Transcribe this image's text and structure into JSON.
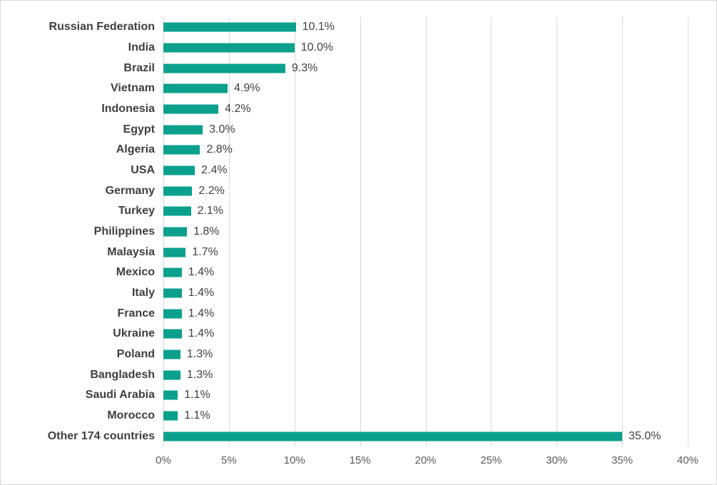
{
  "chart_data": {
    "type": "bar",
    "orientation": "horizontal",
    "title": "",
    "xlabel": "",
    "ylabel": "",
    "categories": [
      "Russian Federation",
      "India",
      "Brazil",
      "Vietnam",
      "Indonesia",
      "Egypt",
      "Algeria",
      "USA",
      "Germany",
      "Turkey",
      "Philippines",
      "Malaysia",
      "Mexico",
      "Italy",
      "France",
      "Ukraine",
      "Poland",
      "Bangladesh",
      "Saudi Arabia",
      "Morocco",
      "Other 174 countries"
    ],
    "values": [
      10.1,
      10.0,
      9.3,
      4.9,
      4.2,
      3.0,
      2.8,
      2.4,
      2.2,
      2.1,
      1.8,
      1.7,
      1.4,
      1.4,
      1.4,
      1.4,
      1.3,
      1.3,
      1.1,
      1.1,
      35.0
    ],
    "data_labels": [
      "10.1%",
      "10.0%",
      "9.3%",
      "4.9%",
      "4.2%",
      "3.0%",
      "2.8%",
      "2.4%",
      "2.2%",
      "2.1%",
      "1.8%",
      "1.7%",
      "1.4%",
      "1.4%",
      "1.4%",
      "1.4%",
      "1.3%",
      "1.3%",
      "1.1%",
      "1.1%",
      "35.0%"
    ],
    "xlim": [
      0,
      40
    ],
    "x_ticks": [
      "0%",
      "5%",
      "10%",
      "15%",
      "20%",
      "25%",
      "30%",
      "35%",
      "40%"
    ],
    "x_tick_values": [
      0,
      5,
      10,
      15,
      20,
      25,
      30,
      35,
      40
    ],
    "grid": true,
    "legend": false,
    "colors": {
      "bar": "#0aa08c",
      "grid": "#d9d9d9",
      "border": "#d9d9d9",
      "background": "#ffffff",
      "category_label": "#3f3f3f",
      "data_label": "#404040",
      "tick_label": "#595959"
    }
  }
}
